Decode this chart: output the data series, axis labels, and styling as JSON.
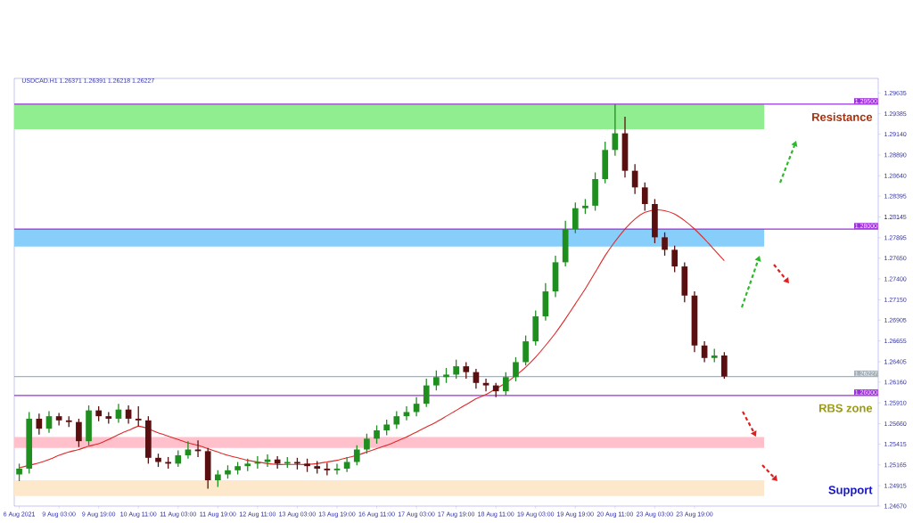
{
  "chart_data": {
    "type": "candlestick",
    "title": "USDCAD.H1 1.26371 1.26391 1.26218 1.26227",
    "categories": [
      "6 Aug 2021",
      null,
      null,
      null,
      "9 Aug 03:00",
      null,
      null,
      null,
      "9 Aug 19:00",
      null,
      null,
      null,
      "10 Aug 11:00",
      null,
      null,
      null,
      "11 Aug 03:00",
      null,
      null,
      null,
      "11 Aug 19:00",
      null,
      null,
      null,
      "12 Aug 11:00",
      null,
      null,
      null,
      "13 Aug 03:00",
      null,
      null,
      null,
      "13 Aug 19:00",
      null,
      null,
      null,
      "16 Aug 11:00",
      null,
      null,
      null,
      "17 Aug 03:00",
      null,
      null,
      null,
      "17 Aug 19:00",
      null,
      null,
      null,
      "18 Aug 11:00",
      null,
      null,
      null,
      "19 Aug 03:00",
      null,
      null,
      null,
      "19 Aug 19:00",
      null,
      null,
      null,
      "20 Aug 11:00",
      null,
      null,
      null,
      "23 Aug 03:00",
      null,
      null,
      null,
      "23 Aug 19:00",
      null,
      null,
      null
    ],
    "ohlc": [
      [
        1.2505,
        1.2518,
        1.2497,
        1.2512
      ],
      [
        1.2512,
        1.258,
        1.2506,
        1.2572
      ],
      [
        1.2572,
        1.2578,
        1.2553,
        1.256
      ],
      [
        1.256,
        1.2581,
        1.2555,
        1.2575
      ],
      [
        1.2575,
        1.2579,
        1.2564,
        1.257
      ],
      [
        1.257,
        1.2575,
        1.2562,
        1.2568
      ],
      [
        1.2568,
        1.2572,
        1.2538,
        1.2545
      ],
      [
        1.2545,
        1.2588,
        1.254,
        1.2582
      ],
      [
        1.2582,
        1.2587,
        1.2569,
        1.2575
      ],
      [
        1.2575,
        1.258,
        1.2566,
        1.2572
      ],
      [
        1.2572,
        1.259,
        1.2567,
        1.2583
      ],
      [
        1.2583,
        1.2588,
        1.2566,
        1.2572
      ],
      [
        1.2572,
        1.2587,
        1.2563,
        1.257
      ],
      [
        1.257,
        1.2575,
        1.2518,
        1.2525
      ],
      [
        1.2525,
        1.253,
        1.2514,
        1.252
      ],
      [
        1.252,
        1.2526,
        1.2512,
        1.2518
      ],
      [
        1.2518,
        1.2534,
        1.2514,
        1.2528
      ],
      [
        1.2528,
        1.2545,
        1.2524,
        1.2535
      ],
      [
        1.2535,
        1.2546,
        1.2526,
        1.2533
      ],
      [
        1.2533,
        1.2537,
        1.2488,
        1.2498
      ],
      [
        1.2498,
        1.251,
        1.249,
        1.2505
      ],
      [
        1.2505,
        1.2516,
        1.25,
        1.251
      ],
      [
        1.251,
        1.252,
        1.2505,
        1.2515
      ],
      [
        1.2515,
        1.2524,
        1.2509,
        1.2518
      ],
      [
        1.2518,
        1.2527,
        1.2512,
        1.252
      ],
      [
        1.252,
        1.2529,
        1.2514,
        1.2523
      ],
      [
        1.2523,
        1.2527,
        1.2512,
        1.2518
      ],
      [
        1.2518,
        1.2526,
        1.2513,
        1.252
      ],
      [
        1.252,
        1.2525,
        1.2511,
        1.2518
      ],
      [
        1.2518,
        1.2524,
        1.2508,
        1.2515
      ],
      [
        1.2515,
        1.2521,
        1.2506,
        1.2512
      ],
      [
        1.2512,
        1.2519,
        1.2504,
        1.251
      ],
      [
        1.251,
        1.2518,
        1.2505,
        1.2512
      ],
      [
        1.2512,
        1.2526,
        1.2508,
        1.252
      ],
      [
        1.252,
        1.254,
        1.2516,
        1.2535
      ],
      [
        1.2535,
        1.2554,
        1.253,
        1.2548
      ],
      [
        1.2548,
        1.2564,
        1.2542,
        1.2558
      ],
      [
        1.2558,
        1.2571,
        1.2552,
        1.2565
      ],
      [
        1.2565,
        1.2581,
        1.256,
        1.2575
      ],
      [
        1.2575,
        1.2587,
        1.257,
        1.258
      ],
      [
        1.258,
        1.2598,
        1.2575,
        1.259
      ],
      [
        1.259,
        1.262,
        1.2586,
        1.2612
      ],
      [
        1.2612,
        1.263,
        1.2606,
        1.2622
      ],
      [
        1.2622,
        1.2633,
        1.2615,
        1.2625
      ],
      [
        1.2625,
        1.2643,
        1.262,
        1.2635
      ],
      [
        1.2635,
        1.264,
        1.262,
        1.2628
      ],
      [
        1.2628,
        1.2632,
        1.2608,
        1.2615
      ],
      [
        1.2615,
        1.262,
        1.2605,
        1.2612
      ],
      [
        1.2612,
        1.2615,
        1.2598,
        1.2605
      ],
      [
        1.2605,
        1.2628,
        1.26,
        1.2622
      ],
      [
        1.2622,
        1.2646,
        1.2617,
        1.264
      ],
      [
        1.264,
        1.2672,
        1.2636,
        1.2665
      ],
      [
        1.2665,
        1.2702,
        1.266,
        1.2695
      ],
      [
        1.2695,
        1.2735,
        1.269,
        1.2725
      ],
      [
        1.2725,
        1.2768,
        1.2718,
        1.276
      ],
      [
        1.276,
        1.281,
        1.2755,
        1.28
      ],
      [
        1.28,
        1.2832,
        1.2795,
        1.2825
      ],
      [
        1.2825,
        1.2836,
        1.2818,
        1.2828
      ],
      [
        1.2828,
        1.2868,
        1.2822,
        1.286
      ],
      [
        1.286,
        1.2905,
        1.2855,
        1.2895
      ],
      [
        1.2895,
        1.295,
        1.2888,
        1.2915
      ],
      [
        1.2915,
        1.2935,
        1.2862,
        1.287
      ],
      [
        1.287,
        1.2878,
        1.2842,
        1.285
      ],
      [
        1.285,
        1.2856,
        1.2822,
        1.283
      ],
      [
        1.283,
        1.2836,
        1.2783,
        1.279
      ],
      [
        1.279,
        1.2796,
        1.2768,
        1.2775
      ],
      [
        1.2775,
        1.278,
        1.2748,
        1.2755
      ],
      [
        1.2755,
        1.276,
        1.2712,
        1.272
      ],
      [
        1.272,
        1.2725,
        1.2652,
        1.266
      ],
      [
        1.266,
        1.2665,
        1.264,
        1.2645
      ],
      [
        1.2645,
        1.2656,
        1.264,
        1.2648
      ],
      [
        1.2648,
        1.2652,
        1.262,
        1.26227
      ]
    ],
    "series": [
      {
        "type": "line",
        "color": "#e02828",
        "values": [
          1.2513,
          1.2516,
          1.2519,
          1.2523,
          1.2528,
          1.2532,
          1.2535,
          1.2539,
          1.2542,
          1.2547,
          1.2553,
          1.2558,
          1.2563,
          1.256,
          1.2555,
          1.2551,
          1.2547,
          1.2543,
          1.254,
          1.2536,
          1.2532,
          1.2528,
          1.2525,
          1.2522,
          1.252,
          1.2518,
          1.2517,
          1.2517,
          1.2517,
          1.2517,
          1.2518,
          1.252,
          1.2522,
          1.2525,
          1.2528,
          1.2532,
          1.2536,
          1.254,
          1.2545,
          1.255,
          1.2556,
          1.2562,
          1.2568,
          1.2575,
          1.2582,
          1.2589,
          1.2596,
          1.2601,
          1.2608,
          1.2615,
          1.2624,
          1.2634,
          1.2646,
          1.266,
          1.2675,
          1.2692,
          1.271,
          1.2728,
          1.2748,
          1.2768,
          1.2785,
          1.28,
          1.2812,
          1.282,
          1.2823,
          1.2822,
          1.2818,
          1.281,
          1.28,
          1.2788,
          1.2775,
          1.2762
        ]
      }
    ],
    "ylim": [
      1.2467,
      1.2981
    ],
    "yticks": [
      1.29635,
      1.29385,
      {
        "value": 1.2914,
        "label": "1.29140"
      },
      {
        "value": 1.2889,
        "label": "1.28890"
      },
      {
        "value": 1.2864,
        "label": "1.28640"
      },
      1.28395,
      1.28145,
      1.27895,
      {
        "value": 1.2765,
        "label": "1.27650"
      },
      {
        "value": 1.274,
        "label": "1.27400"
      },
      {
        "value": 1.2715,
        "label": "1.27150"
      },
      1.26905,
      1.26655,
      1.26405,
      {
        "value": 1.2616,
        "label": "1.26160"
      },
      {
        "value": 1.2591,
        "label": "1.25910"
      },
      {
        "value": 1.2566,
        "label": "1.25660"
      },
      1.25415,
      1.25165,
      1.24915,
      {
        "value": 1.2467,
        "label": "1.24670"
      }
    ],
    "ref_lines": [
      {
        "axis": "y",
        "value": 1.295,
        "label": "1.29500",
        "color": "#9b30d9"
      },
      {
        "axis": "y",
        "value": 1.28,
        "label": "1.28000",
        "color": "#9b30d9"
      },
      {
        "axis": "y",
        "value": 1.26,
        "label": "1.26000",
        "color": "#9b30d9"
      },
      {
        "axis": "y",
        "value": 1.26227,
        "label": "1.26227",
        "color": "#a8b0b8"
      }
    ],
    "bands": [
      {
        "axis": "y",
        "from": 1.292,
        "to": 1.295,
        "color": "#90ee90"
      },
      {
        "axis": "y",
        "from": 1.2779,
        "to": 1.28,
        "color": "#87cefa"
      },
      {
        "axis": "y",
        "from": 1.2537,
        "to": 1.255,
        "color": "#ffc0cb"
      },
      {
        "axis": "y",
        "from": 1.2479,
        "to": 1.2498,
        "color": "#fde8cc"
      }
    ],
    "annotations": [
      "Resistance",
      "RBS zone",
      "Support"
    ]
  }
}
